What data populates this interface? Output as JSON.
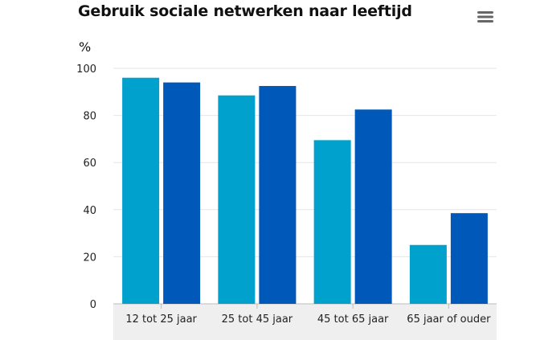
{
  "title": "Gebruik sociale netwerken naar leeftijd",
  "menu_icon": "hamburger-menu-icon",
  "colors": {
    "series_light": "#00A1CD",
    "series_dark": "#0058B8",
    "grid": "#e6e6e6",
    "axis_band": "#efefef",
    "axis_line": "#bdbdbd"
  },
  "chart_data": {
    "type": "bar",
    "title": "Gebruik sociale netwerken naar leeftijd",
    "ylabel": "%",
    "xlabel": "",
    "categories": [
      "12 tot 25 jaar",
      "25 tot 45 jaar",
      "45 tot 65 jaar",
      "65 jaar of ouder"
    ],
    "series": [
      {
        "values": [
          96,
          88.5,
          69.5,
          25
        ]
      },
      {
        "values": [
          94,
          92.5,
          82.5,
          38.5
        ]
      }
    ],
    "ylim": [
      0,
      100
    ],
    "yticks": [
      0,
      20,
      40,
      60,
      80,
      100
    ],
    "grid": true,
    "legend": "none"
  }
}
